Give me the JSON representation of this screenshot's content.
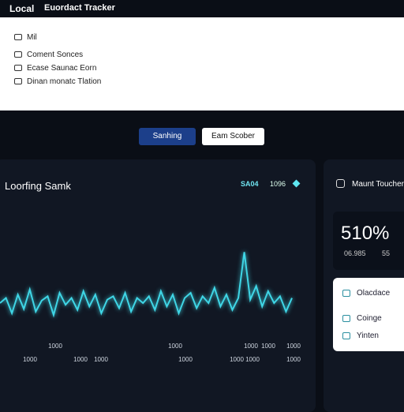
{
  "header": {
    "brand": "Local",
    "title": "Euordact Tracker"
  },
  "menu": [
    "Mil",
    "Coment Sonces",
    "Ecase Saunac Eorn",
    "Dinan monatc Tlation"
  ],
  "buttons": [
    "Sanhing",
    "Eam Scober"
  ],
  "chart": {
    "title": "Loorfing Samk",
    "stat_a": "SA04",
    "stat_b": "1096",
    "values": [
      52,
      58,
      40,
      62,
      45,
      68,
      42,
      55,
      60,
      38,
      64,
      50,
      58,
      44,
      66,
      48,
      62,
      40,
      56,
      60,
      46,
      64,
      42,
      58,
      52,
      60,
      44,
      66,
      48,
      62,
      40,
      58,
      64,
      46,
      60,
      52,
      70,
      48,
      62,
      44,
      58,
      112,
      56,
      72,
      48,
      66,
      52,
      60,
      42,
      58
    ],
    "ylim": [
      0,
      130
    ],
    "color": "#3fd6e6",
    "labels_row1": [
      "1000",
      "1000",
      "1000",
      "1000",
      "1000"
    ],
    "labels_row2": [
      "1000",
      "1000",
      "1000",
      "1000",
      "1000",
      "1000",
      "1000"
    ]
  },
  "side": {
    "title": "Maunt Toucher",
    "big": "510%",
    "sub_a": "06.985",
    "sub_b": "55",
    "items": [
      "Olacdace",
      "Coinge",
      "Yinten"
    ]
  }
}
